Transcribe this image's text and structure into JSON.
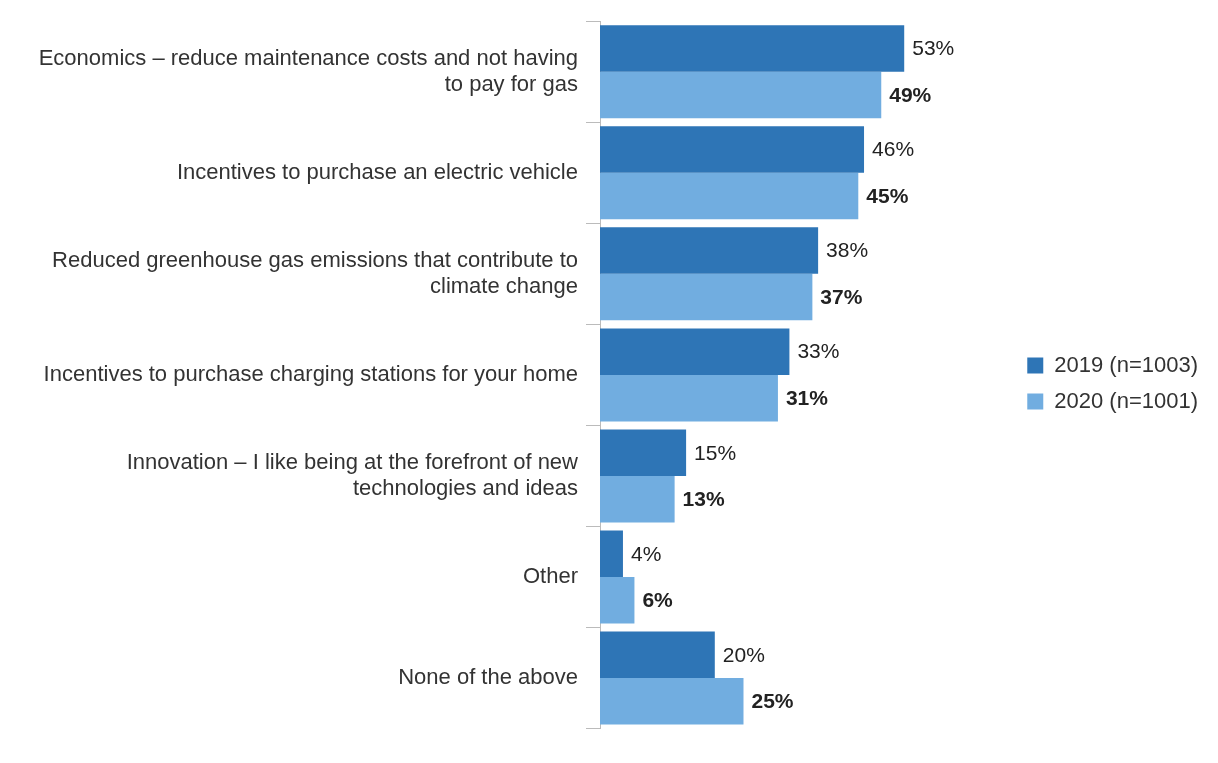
{
  "chart_data": {
    "type": "bar",
    "orientation": "horizontal",
    "categories": [
      "Economics – reduce maintenance costs and not having to pay for gas",
      "Incentives to purchase an electric vehicle",
      "Reduced greenhouse gas emissions that contribute to climate change",
      "Incentives to purchase charging stations for your home",
      "Innovation – I like being at the forefront of new technologies and ideas",
      "Other",
      "None of the above"
    ],
    "series": [
      {
        "name": "2019 (n=1003)",
        "color": "#2e75b6",
        "values": [
          53,
          46,
          38,
          33,
          15,
          4,
          20
        ],
        "value_labels": [
          "53%",
          "46%",
          "38%",
          "33%",
          "15%",
          "4%",
          "20%"
        ]
      },
      {
        "name": "2020 (n=1001)",
        "color": "#71ade0",
        "values": [
          49,
          45,
          37,
          31,
          13,
          6,
          25
        ],
        "value_labels": [
          "49%",
          "45%",
          "37%",
          "31%",
          "13%",
          "6%",
          "25%"
        ]
      }
    ],
    "legend": "right",
    "grid": false
  }
}
